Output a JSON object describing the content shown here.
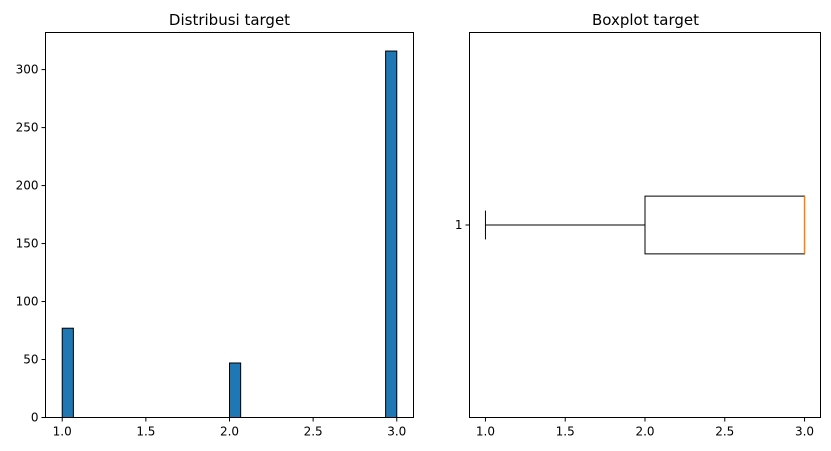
{
  "chart_data": [
    {
      "type": "bar",
      "title": "Distribusi target",
      "xlabel": "",
      "ylabel": "",
      "bins": 30,
      "bar_color": "#1f77b4",
      "edge_color": "#000000",
      "bars": [
        {
          "x_start": 1.0,
          "x_end": 1.0667,
          "value": 77
        },
        {
          "x_start": 2.0,
          "x_end": 2.0667,
          "value": 47
        },
        {
          "x_start": 2.9333,
          "x_end": 3.0,
          "value": 316
        }
      ],
      "xlim": [
        0.9,
        3.1
      ],
      "ylim": [
        0,
        332
      ],
      "xticks": [
        1.0,
        1.5,
        2.0,
        2.5,
        3.0
      ],
      "xtick_labels": [
        "1.0",
        "1.5",
        "2.0",
        "2.5",
        "3.0"
      ],
      "yticks": [
        0,
        50,
        100,
        150,
        200,
        250,
        300
      ],
      "ytick_labels": [
        "0",
        "50",
        "100",
        "150",
        "200",
        "250",
        "300"
      ],
      "grid": false
    },
    {
      "type": "boxplot",
      "title": "Boxplot target",
      "orientation": "horizontal",
      "xlabel": "",
      "ylabel": "",
      "box": {
        "position": 1,
        "whisker_low": 1.0,
        "q1": 2.0,
        "median": 3.0,
        "q3": 3.0,
        "whisker_high": 3.0
      },
      "median_color": "#ff7f0e",
      "xlim": [
        0.9,
        3.1
      ],
      "ylim": [
        0.5,
        1.5
      ],
      "xticks": [
        1.0,
        1.5,
        2.0,
        2.5,
        3.0
      ],
      "xtick_labels": [
        "1.0",
        "1.5",
        "2.0",
        "2.5",
        "3.0"
      ],
      "yticks": [
        1
      ],
      "ytick_labels": [
        "1"
      ],
      "grid": false
    }
  ]
}
